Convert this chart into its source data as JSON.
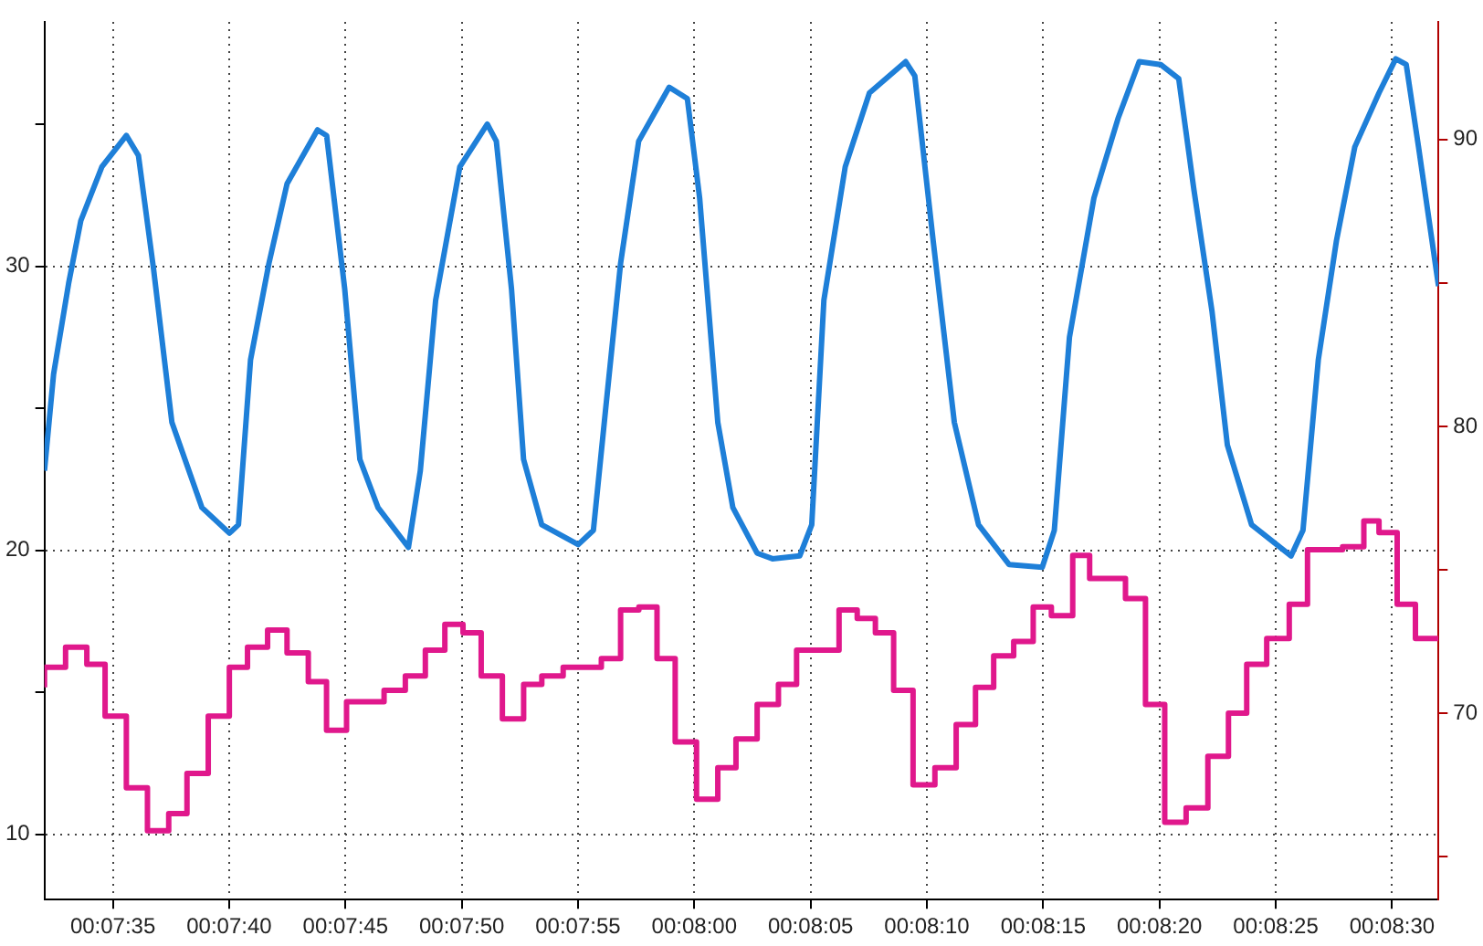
{
  "chart_data": {
    "type": "line",
    "grid": true,
    "marker": "none",
    "xlim": [
      0.125572,
      0.142222
    ],
    "xticks": [
      {
        "value": 0.126389,
        "label": "00:07:35"
      },
      {
        "value": 0.127778,
        "label": "00:07:40"
      },
      {
        "value": 0.129167,
        "label": "00:07:45"
      },
      {
        "value": 0.130556,
        "label": "00:07:50"
      },
      {
        "value": 0.131944,
        "label": "00:07:55"
      },
      {
        "value": 0.133333,
        "label": "00:08:00"
      },
      {
        "value": 0.134722,
        "label": "00:08:05"
      },
      {
        "value": 0.136111,
        "label": "00:08:10"
      },
      {
        "value": 0.1375,
        "label": "00:08:15"
      },
      {
        "value": 0.138889,
        "label": "00:08:20"
      },
      {
        "value": 0.140278,
        "label": "00:08:25"
      },
      {
        "value": 0.141667,
        "label": "00:08:30"
      }
    ],
    "ylim": [
      7.7,
      38.6
    ],
    "yticks": [
      10,
      {
        "value": 15,
        "label": null
      },
      20,
      {
        "value": 25,
        "label": null
      },
      30,
      {
        "value": 35,
        "label": null
      }
    ],
    "y2lim": [
      63.5,
      94.1
    ],
    "y2ticks": [
      {
        "value": 65,
        "label": null
      },
      70,
      {
        "value": 75,
        "label": null
      },
      80,
      {
        "value": 85,
        "label": null
      },
      90
    ],
    "series": [
      {
        "type": "line",
        "color": "#1e7fd8",
        "x": [
          0.125572,
          0.125681,
          0.125861,
          0.126006,
          0.126258,
          0.12655,
          0.126694,
          0.126875,
          0.127094,
          0.127453,
          0.127781,
          0.127889,
          0.128033,
          0.128253,
          0.128469,
          0.128833,
          0.128942,
          0.129158,
          0.129339,
          0.129556,
          0.129919,
          0.130061,
          0.130244,
          0.130533,
          0.130861,
          0.130969,
          0.13115,
          0.131294,
          0.131511,
          0.131947,
          0.132128,
          0.132272,
          0.132453,
          0.132669,
          0.133033,
          0.13325,
          0.133397,
          0.133614,
          0.133794,
          0.134083,
          0.134267,
          0.134592,
          0.134736,
          0.134881,
          0.135136,
          0.135425,
          0.135858,
          0.135967,
          0.136186,
          0.136439,
          0.136728,
          0.137092,
          0.137489,
          0.137633,
          0.137814,
          0.138106,
          0.138394,
          0.138647,
          0.138903,
          0.139119,
          0.1393,
          0.139517,
          0.1397,
          0.139989,
          0.140461,
          0.140603,
          0.140786,
          0.141003,
          0.141222,
          0.141511,
          0.141711,
          0.141836,
          0.141983,
          0.142222
        ],
        "values": [
          22.8,
          26.2,
          29.4,
          31.6,
          33.5,
          34.6,
          33.9,
          29.9,
          24.5,
          21.5,
          20.6,
          20.9,
          26.7,
          30.1,
          32.9,
          34.8,
          34.6,
          29.2,
          23.2,
          21.5,
          20.1,
          22.8,
          28.8,
          33.5,
          35.0,
          34.4,
          29.2,
          23.2,
          20.9,
          20.2,
          20.7,
          24.9,
          30.1,
          34.4,
          36.3,
          35.9,
          32.4,
          24.5,
          21.5,
          19.9,
          19.7,
          19.8,
          20.9,
          28.8,
          33.5,
          36.1,
          37.2,
          36.7,
          30.9,
          24.5,
          20.9,
          19.5,
          19.4,
          20.7,
          27.5,
          32.4,
          35.2,
          37.2,
          37.1,
          36.6,
          32.7,
          28.4,
          23.7,
          20.9,
          19.8,
          20.7,
          26.7,
          30.9,
          34.2,
          36.1,
          37.3,
          37.1,
          34.2,
          29.3
        ]
      },
      {
        "type": "step",
        "axis": "y2",
        "color": "#e0188c",
        "x": [
          0.125572,
          0.125824,
          0.126078,
          0.126296,
          0.12655,
          0.126802,
          0.127056,
          0.127274,
          0.127528,
          0.12778,
          0.127997,
          0.128237,
          0.128469,
          0.128723,
          0.128941,
          0.12918,
          0.129628,
          0.129882,
          0.130121,
          0.130354,
          0.130571,
          0.130788,
          0.131041,
          0.131295,
          0.131512,
          0.131767,
          0.132223,
          0.132453,
          0.132671,
          0.132888,
          0.133105,
          0.13336,
          0.133614,
          0.133831,
          0.134084,
          0.134338,
          0.134555,
          0.135062,
          0.135279,
          0.135496,
          0.135714,
          0.135946,
          0.136207,
          0.136461,
          0.136692,
          0.136909,
          0.137148,
          0.137381,
          0.137598,
          0.137853,
          0.138055,
          0.138483,
          0.138722,
          0.138952,
          0.139207,
          0.139467,
          0.139713,
          0.139931,
          0.14017,
          0.140439,
          0.140657,
          0.141076,
          0.14133,
          0.141511,
          0.141728,
          0.141946,
          0.142178,
          0.142222
        ],
        "values": [
          70.9,
          71.6,
          72.3,
          71.7,
          69.9,
          67.4,
          65.9,
          66.5,
          67.9,
          69.9,
          71.6,
          72.3,
          72.9,
          72.1,
          71.1,
          69.4,
          70.4,
          70.8,
          71.3,
          72.2,
          73.1,
          72.8,
          71.3,
          69.8,
          71.0,
          71.3,
          71.6,
          71.9,
          73.6,
          73.7,
          71.9,
          69.0,
          67.0,
          68.1,
          69.1,
          70.3,
          71.0,
          72.2,
          73.6,
          73.3,
          72.8,
          70.8,
          67.5,
          68.1,
          69.6,
          70.9,
          72.0,
          72.5,
          73.7,
          73.4,
          75.5,
          74.7,
          74.0,
          70.3,
          66.2,
          66.7,
          68.5,
          70.0,
          71.7,
          72.6,
          73.8,
          75.7,
          75.8,
          76.7,
          76.3,
          73.8,
          72.6,
          72.6
        ]
      }
    ]
  }
}
